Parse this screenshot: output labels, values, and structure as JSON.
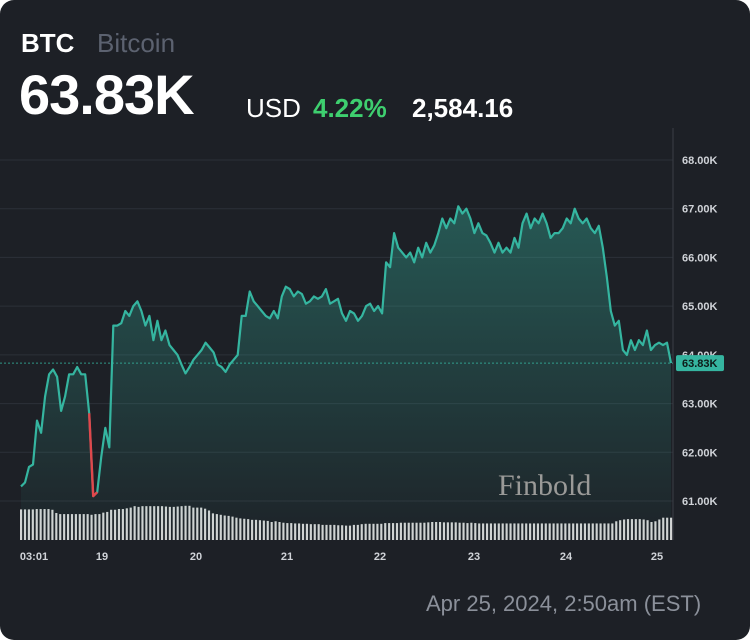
{
  "header": {
    "symbol": "BTC",
    "name": "Bitcoin",
    "price": "63.83K",
    "currency": "USD",
    "change_pct": "4.22%",
    "change_abs": "2,584.16"
  },
  "timestamp": "Apr 25, 2024, 2:50am (EST)",
  "watermark": "Finbold",
  "colors": {
    "background": "#1d2026",
    "line": "#35b5a0",
    "line_down": "#e0474c",
    "positive": "#3ecf6f",
    "volume": "#d4d4d4",
    "grid": "#2c3038"
  },
  "chart_data": {
    "type": "area",
    "title": "",
    "xlabel": "",
    "ylabel": "",
    "x_ticks": [
      "03:01",
      "19",
      "20",
      "21",
      "22",
      "23",
      "24",
      "25"
    ],
    "y_ticks": [
      "61.00K",
      "62.00K",
      "63.00K",
      "64.00K",
      "65.00K",
      "66.00K",
      "67.00K",
      "68.00K"
    ],
    "ylim": [
      60900,
      68250
    ],
    "grid": true,
    "last_price_label": "63.83K",
    "last_price": 63830,
    "series": [
      {
        "values": [
          61300,
          61380,
          61700,
          61750,
          62650,
          62400,
          63150,
          63600,
          63700,
          63550,
          62850,
          63150,
          63600,
          63600,
          63750,
          63600,
          63600,
          62800,
          61100,
          61180,
          61900,
          62500,
          62100,
          64600,
          64600,
          64650,
          64900,
          64800,
          65000,
          65100,
          64900,
          64600,
          64800,
          64300,
          64700,
          64300,
          64500,
          64200,
          64100,
          64000,
          63800,
          63620,
          63750,
          63900,
          64000,
          64100,
          64250,
          64150,
          64050,
          63800,
          63750,
          63650,
          63800,
          63900,
          64000,
          64800,
          64800,
          65300,
          65100,
          65000,
          64900,
          64800,
          64750,
          64900,
          64750,
          65200,
          65400,
          65350,
          65200,
          65300,
          65250,
          65050,
          65100,
          65200,
          65150,
          65200,
          65350,
          65050,
          65100,
          65150,
          64850,
          64700,
          64900,
          64850,
          64700,
          64800,
          65000,
          65050,
          64900,
          65000,
          64850,
          65900,
          65800,
          66500,
          66200,
          66100,
          66000,
          66100,
          65900,
          66200,
          66000,
          66300,
          66100,
          66250,
          66500,
          66800,
          66600,
          66800,
          66700,
          67050,
          66900,
          67000,
          66800,
          66500,
          66700,
          66500,
          66450,
          66300,
          66100,
          66300,
          66100,
          66200,
          66100,
          66400,
          66200,
          66700,
          66900,
          66600,
          66800,
          66700,
          66900,
          66700,
          66400,
          66500,
          66500,
          66600,
          66800,
          66700,
          67000,
          66800,
          66700,
          66800,
          66600,
          66500,
          66650,
          66200,
          65600,
          64900,
          64600,
          64700,
          64100,
          64000,
          64300,
          64100,
          64300,
          64200,
          64500,
          64100,
          64200,
          64250,
          64200,
          64250,
          63830
        ]
      }
    ],
    "volume": [
      0.85,
      0.85,
      0.85,
      0.85,
      0.86,
      0.86,
      0.86,
      0.86,
      0.84,
      0.75,
      0.72,
      0.72,
      0.72,
      0.72,
      0.72,
      0.72,
      0.72,
      0.72,
      0.7,
      0.72,
      0.72,
      0.76,
      0.78,
      0.84,
      0.84,
      0.86,
      0.86,
      0.88,
      0.9,
      0.94,
      0.92,
      0.94,
      0.94,
      0.94,
      0.94,
      0.94,
      0.94,
      0.93,
      0.92,
      0.92,
      0.93,
      0.94,
      0.95,
      0.95,
      0.9,
      0.9,
      0.9,
      0.87,
      0.82,
      0.74,
      0.72,
      0.7,
      0.68,
      0.67,
      0.65,
      0.62,
      0.6,
      0.59,
      0.58,
      0.56,
      0.56,
      0.55,
      0.54,
      0.53,
      0.5,
      0.52,
      0.5,
      0.48,
      0.47,
      0.47,
      0.46,
      0.46,
      0.45,
      0.45,
      0.44,
      0.44,
      0.44,
      0.42,
      0.42,
      0.42,
      0.42,
      0.41,
      0.41,
      0.4,
      0.4,
      0.42,
      0.42,
      0.44,
      0.45,
      0.45,
      0.45,
      0.45,
      0.45,
      0.47,
      0.47,
      0.47,
      0.47,
      0.48,
      0.48,
      0.48,
      0.48,
      0.48,
      0.48,
      0.48,
      0.49,
      0.5,
      0.5,
      0.5,
      0.49,
      0.49,
      0.49,
      0.49,
      0.48,
      0.48,
      0.47,
      0.48,
      0.47,
      0.46,
      0.46,
      0.46,
      0.46,
      0.46,
      0.46,
      0.46,
      0.46,
      0.46,
      0.46,
      0.46,
      0.46,
      0.46,
      0.46,
      0.46,
      0.46,
      0.46,
      0.46,
      0.46,
      0.46,
      0.46,
      0.46,
      0.46,
      0.46,
      0.46,
      0.46,
      0.46,
      0.46,
      0.46,
      0.46,
      0.46,
      0.46,
      0.46,
      0.46,
      0.46,
      0.52,
      0.55,
      0.57,
      0.58,
      0.58,
      0.58,
      0.58,
      0.57,
      0.55,
      0.5,
      0.52,
      0.57,
      0.62,
      0.62,
      0.62
    ]
  }
}
